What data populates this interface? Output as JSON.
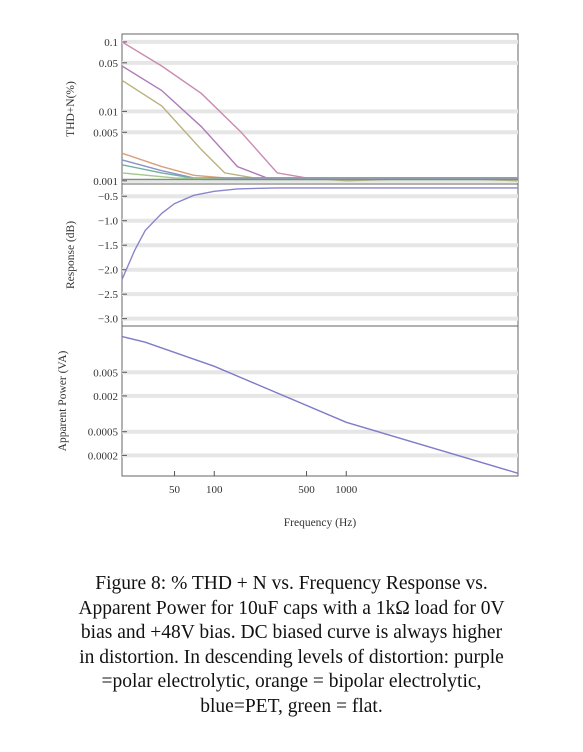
{
  "chart_data": [
    {
      "id": "thd",
      "type": "line",
      "ylabel": "THD+N(%)",
      "y_scale": "log",
      "yticks": [
        0.1,
        0.05,
        0.01,
        0.005,
        0.001
      ],
      "ytick_labels": [
        "0.1",
        "0.05",
        "0.01",
        "0.005",
        "0.001"
      ],
      "ylim": [
        0.0009,
        0.13
      ],
      "x_scale": "log",
      "xlim": [
        20,
        20000
      ],
      "series": [
        {
          "color": "#c98bb0",
          "points": [
            [
              20,
              0.1
            ],
            [
              40,
              0.045
            ],
            [
              80,
              0.018
            ],
            [
              160,
              0.005
            ],
            [
              300,
              0.0013
            ],
            [
              500,
              0.0011
            ],
            [
              1000,
              0.0011
            ],
            [
              5000,
              0.0011
            ],
            [
              20000,
              0.0011
            ]
          ]
        },
        {
          "color": "#b07ab8",
          "points": [
            [
              20,
              0.045
            ],
            [
              40,
              0.02
            ],
            [
              80,
              0.006
            ],
            [
              150,
              0.0016
            ],
            [
              250,
              0.0011
            ],
            [
              500,
              0.0011
            ],
            [
              1000,
              0.0011
            ],
            [
              5000,
              0.0011
            ],
            [
              20000,
              0.0011
            ]
          ]
        },
        {
          "color": "#b9b27e",
          "points": [
            [
              20,
              0.028
            ],
            [
              40,
              0.012
            ],
            [
              80,
              0.0028
            ],
            [
              120,
              0.0013
            ],
            [
              200,
              0.0011
            ],
            [
              500,
              0.0011
            ],
            [
              1000,
              0.001
            ],
            [
              5000,
              0.0011
            ],
            [
              20000,
              0.001
            ]
          ]
        },
        {
          "color": "#d5a07a",
          "points": [
            [
              20,
              0.0025
            ],
            [
              40,
              0.0016
            ],
            [
              70,
              0.0012
            ],
            [
              120,
              0.0011
            ],
            [
              300,
              0.0011
            ],
            [
              1000,
              0.0011
            ],
            [
              5000,
              0.0011
            ],
            [
              20000,
              0.0011
            ]
          ]
        },
        {
          "color": "#8c92cc",
          "points": [
            [
              20,
              0.002
            ],
            [
              40,
              0.0014
            ],
            [
              70,
              0.0011
            ],
            [
              150,
              0.0011
            ],
            [
              1000,
              0.0011
            ],
            [
              5000,
              0.0011
            ],
            [
              20000,
              0.0011
            ]
          ]
        },
        {
          "color": "#6fb0a0",
          "points": [
            [
              20,
              0.0017
            ],
            [
              40,
              0.0013
            ],
            [
              80,
              0.00105
            ],
            [
              200,
              0.00105
            ],
            [
              1000,
              0.00105
            ],
            [
              20000,
              0.00105
            ]
          ]
        },
        {
          "color": "#a7c98e",
          "points": [
            [
              20,
              0.0013
            ],
            [
              50,
              0.0011
            ],
            [
              150,
              0.00105
            ],
            [
              1000,
              0.00105
            ],
            [
              20000,
              0.00105
            ]
          ]
        },
        {
          "color": "#7f8f7a",
          "points": [
            [
              20,
              0.00105
            ],
            [
              200,
              0.00105
            ],
            [
              1000,
              0.00105
            ],
            [
              20000,
              0.00105
            ]
          ]
        }
      ]
    },
    {
      "id": "response",
      "type": "line",
      "ylabel": "Response (dB)",
      "yticks": [
        -0.5,
        -1.0,
        -1.5,
        -2.0,
        -2.5,
        -3.0
      ],
      "ytick_labels": [
        "−0.5",
        "−1.0",
        "−1.5",
        "−2.0",
        "−2.5",
        "−3.0"
      ],
      "ylim": [
        -3.15,
        -0.25
      ],
      "x_scale": "log",
      "xlim": [
        20,
        20000
      ],
      "series": [
        {
          "color": "#8a86cc",
          "points": [
            [
              20,
              -2.2
            ],
            [
              25,
              -1.6
            ],
            [
              30,
              -1.2
            ],
            [
              40,
              -0.85
            ],
            [
              50,
              -0.65
            ],
            [
              70,
              -0.48
            ],
            [
              100,
              -0.4
            ],
            [
              150,
              -0.35
            ],
            [
              300,
              -0.33
            ],
            [
              1000,
              -0.33
            ],
            [
              20000,
              -0.33
            ]
          ]
        }
      ]
    },
    {
      "id": "apparent-power",
      "type": "line",
      "ylabel": "Apparent Power (VA)",
      "y_scale": "log",
      "yticks": [
        0.005,
        0.002,
        0.0005,
        0.0002
      ],
      "ytick_labels": [
        "0.005",
        "0.002",
        "0.0005",
        "0.0002"
      ],
      "ylim": [
        9e-05,
        0.03
      ],
      "xlabel": "Frequency (Hz)",
      "x_scale": "log",
      "xlim": [
        20,
        20000
      ],
      "xticks": [
        50,
        100,
        500,
        1000
      ],
      "xtick_labels": [
        "50",
        "100",
        "500",
        "1000"
      ],
      "series": [
        {
          "color": "#7e7cc8",
          "points": [
            [
              20,
              0.02
            ],
            [
              30,
              0.016
            ],
            [
              100,
              0.0063
            ],
            [
              1000,
              0.00072
            ],
            [
              20000,
              0.0001
            ]
          ]
        }
      ]
    }
  ],
  "caption": {
    "lines": [
      "Figure 8: % THD + N vs. Frequency Response vs.",
      "Apparent Power for 10uF caps with a 1kΩ load for 0V",
      "bias and +48V bias.  DC biased curve is always higher",
      "in distortion.  In descending levels of distortion: purple",
      "=polar electrolytic, orange = bipolar electrolytic,",
      "blue=PET, green = flat."
    ]
  }
}
